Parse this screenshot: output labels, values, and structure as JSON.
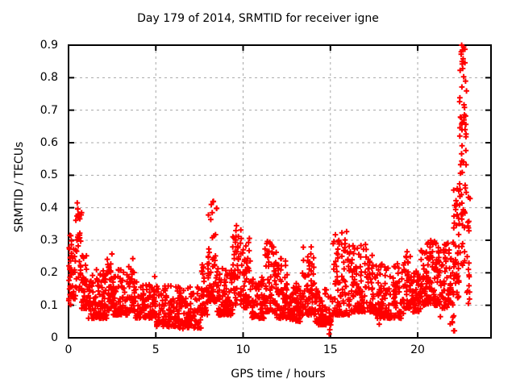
{
  "colors": {
    "marker": "#ff0000",
    "grid": "#a8a8a8",
    "border": "#000000",
    "background": "#ffffff"
  },
  "chart_data": {
    "type": "scatter",
    "title": "Day 179 of 2014, SRMTID for receiver igne",
    "xlabel": "GPS time / hours",
    "ylabel": "SRMTID / TECUs",
    "xlim": [
      0,
      24.2
    ],
    "ylim": [
      0,
      0.9
    ],
    "xticks": [
      0,
      5,
      10,
      15,
      20
    ],
    "xtick_labels": [
      "0",
      "5",
      "10",
      "15",
      "20"
    ],
    "yticks": [
      0,
      0.1,
      0.2,
      0.3,
      0.4,
      0.5,
      0.6,
      0.7,
      0.8,
      0.9
    ],
    "ytick_labels": [
      "0",
      "0.1",
      "0.2",
      "0.3",
      "0.4",
      "0.5",
      "0.6",
      "0.7",
      "0.8",
      "0.9"
    ],
    "grid": true,
    "grid_style": "dashed",
    "legend": "none",
    "marker": "plus",
    "series_name": "SRMTID",
    "seed": 179,
    "density_segments_format": [
      "t_start_h",
      "t_end_h",
      "n_points",
      "y_min_TECU",
      "y_max_TECU",
      "low_bias_exponent"
    ],
    "density_segments": [
      [
        0.0,
        0.15,
        22,
        0.1,
        0.33,
        1.2
      ],
      [
        0.15,
        0.4,
        25,
        0.12,
        0.3,
        1.5
      ],
      [
        0.4,
        0.75,
        35,
        0.14,
        0.4,
        1.3
      ],
      [
        0.75,
        1.1,
        35,
        0.09,
        0.26,
        1.6
      ],
      [
        1.1,
        2.2,
        110,
        0.06,
        0.21,
        1.8
      ],
      [
        2.2,
        2.5,
        30,
        0.08,
        0.27,
        1.7
      ],
      [
        2.5,
        3.4,
        90,
        0.07,
        0.21,
        1.8
      ],
      [
        3.4,
        3.8,
        40,
        0.08,
        0.25,
        1.8
      ],
      [
        3.8,
        5.0,
        100,
        0.06,
        0.19,
        1.8
      ],
      [
        5.0,
        6.2,
        100,
        0.035,
        0.16,
        1.8
      ],
      [
        6.2,
        7.6,
        110,
        0.03,
        0.16,
        1.7
      ],
      [
        7.6,
        8.0,
        40,
        0.07,
        0.23,
        1.6
      ],
      [
        8.0,
        8.5,
        55,
        0.11,
        0.42,
        1.8
      ],
      [
        8.5,
        9.4,
        85,
        0.07,
        0.22,
        1.8
      ],
      [
        9.4,
        9.9,
        50,
        0.1,
        0.35,
        1.5
      ],
      [
        9.9,
        10.45,
        50,
        0.09,
        0.31,
        1.6
      ],
      [
        10.45,
        11.2,
        75,
        0.06,
        0.19,
        1.8
      ],
      [
        11.2,
        11.9,
        70,
        0.08,
        0.31,
        1.8
      ],
      [
        11.9,
        12.6,
        70,
        0.06,
        0.26,
        1.9
      ],
      [
        12.6,
        13.4,
        80,
        0.05,
        0.17,
        1.7
      ],
      [
        13.4,
        14.1,
        70,
        0.07,
        0.28,
        1.9
      ],
      [
        14.1,
        15.05,
        90,
        0.04,
        0.15,
        1.7
      ],
      [
        15.1,
        16.1,
        95,
        0.07,
        0.33,
        1.9
      ],
      [
        16.1,
        17.6,
        130,
        0.08,
        0.29,
        1.9
      ],
      [
        17.6,
        19.2,
        130,
        0.06,
        0.23,
        1.8
      ],
      [
        19.2,
        19.6,
        40,
        0.09,
        0.27,
        1.7
      ],
      [
        19.6,
        20.2,
        60,
        0.08,
        0.21,
        1.6
      ],
      [
        20.2,
        21.0,
        85,
        0.1,
        0.3,
        1.7
      ],
      [
        21.0,
        22.05,
        100,
        0.09,
        0.3,
        1.5
      ],
      [
        21.85,
        22.15,
        7,
        0.02,
        0.07,
        1.2
      ],
      [
        22.05,
        22.4,
        40,
        0.12,
        0.46,
        1.3
      ],
      [
        22.4,
        22.8,
        65,
        0.22,
        0.9,
        1.1
      ],
      [
        22.75,
        23.0,
        18,
        0.1,
        0.46,
        1.4
      ]
    ],
    "extreme_points": [
      [
        0.5,
        0.415
      ],
      [
        0.55,
        0.37
      ],
      [
        8.18,
        0.41
      ],
      [
        8.23,
        0.385
      ],
      [
        9.62,
        0.345
      ],
      [
        14.93,
        0.012
      ],
      [
        14.97,
        0.025
      ],
      [
        22.52,
        0.9
      ],
      [
        22.56,
        0.885
      ],
      [
        22.49,
        0.872
      ],
      [
        22.6,
        0.858
      ],
      [
        22.55,
        0.842
      ],
      [
        22.58,
        0.828
      ],
      [
        6.55,
        0.028
      ],
      [
        5.75,
        0.034
      ],
      [
        17.8,
        0.042
      ],
      [
        21.3,
        0.065
      ]
    ]
  }
}
